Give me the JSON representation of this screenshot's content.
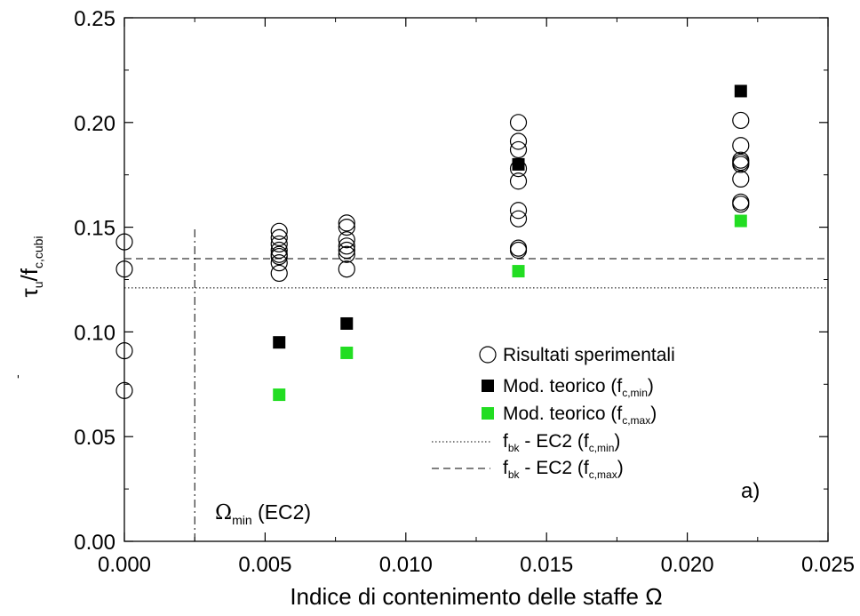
{
  "chart_data": {
    "type": "scatter",
    "xlabel": "Indice di contenimento delle staffe Ω",
    "ylabel": {
      "tau": "τ",
      "bar": "-",
      "u": "u",
      "slash_f": "/f",
      "sub": "c,cubi"
    },
    "xlim": [
      0.0,
      0.025
    ],
    "ylim": [
      0.0,
      0.25
    ],
    "x_ticks": [
      0.0,
      0.005,
      0.01,
      0.015,
      0.02,
      0.025
    ],
    "x_tick_labels": [
      "0.000",
      "0.005",
      "0.010",
      "0.015",
      "0.020",
      "0.025"
    ],
    "y_ticks": [
      0.0,
      0.05,
      0.1,
      0.15,
      0.2,
      0.25
    ],
    "y_tick_labels": [
      "0.00",
      "0.05",
      "0.10",
      "0.15",
      "0.20",
      "0.25"
    ],
    "grid": false,
    "legend_position": "lower-right",
    "series": [
      {
        "key": "sperimentali",
        "marker": "open-circle",
        "color": "#000000",
        "points": [
          [
            0.0,
            0.143
          ],
          [
            0.0,
            0.13
          ],
          [
            0.0,
            0.091
          ],
          [
            0.0,
            0.072
          ],
          [
            0.0055,
            0.148
          ],
          [
            0.0055,
            0.145
          ],
          [
            0.0055,
            0.142
          ],
          [
            0.0055,
            0.139
          ],
          [
            0.0055,
            0.137
          ],
          [
            0.0055,
            0.136
          ],
          [
            0.0055,
            0.133
          ],
          [
            0.0055,
            0.128
          ],
          [
            0.0079,
            0.152
          ],
          [
            0.0079,
            0.15
          ],
          [
            0.0079,
            0.144
          ],
          [
            0.0079,
            0.141
          ],
          [
            0.0079,
            0.139
          ],
          [
            0.0079,
            0.137
          ],
          [
            0.0079,
            0.13
          ],
          [
            0.014,
            0.2
          ],
          [
            0.014,
            0.191
          ],
          [
            0.014,
            0.187
          ],
          [
            0.014,
            0.178
          ],
          [
            0.014,
            0.172
          ],
          [
            0.014,
            0.158
          ],
          [
            0.014,
            0.154
          ],
          [
            0.014,
            0.14
          ],
          [
            0.014,
            0.139
          ],
          [
            0.0219,
            0.201
          ],
          [
            0.0219,
            0.189
          ],
          [
            0.0219,
            0.182
          ],
          [
            0.0219,
            0.181
          ],
          [
            0.0219,
            0.18
          ],
          [
            0.0219,
            0.173
          ],
          [
            0.0219,
            0.162
          ],
          [
            0.0219,
            0.161
          ]
        ]
      },
      {
        "key": "teorico_fcmin",
        "marker": "filled-square",
        "color": "#000000",
        "points": [
          [
            0.0055,
            0.095
          ],
          [
            0.0079,
            0.104
          ],
          [
            0.014,
            0.18
          ],
          [
            0.0219,
            0.215
          ]
        ]
      },
      {
        "key": "teorico_fcmax",
        "marker": "filled-square",
        "color": "#22dd22",
        "points": [
          [
            0.0055,
            0.07
          ],
          [
            0.0079,
            0.09
          ],
          [
            0.014,
            0.129
          ],
          [
            0.0219,
            0.153
          ]
        ]
      }
    ],
    "reference_lines": [
      {
        "key": "fbk_fcmin",
        "orientation": "horizontal",
        "y": 0.121,
        "style": "dotted"
      },
      {
        "key": "fbk_fcmax",
        "orientation": "horizontal",
        "y": 0.135,
        "style": "dashed"
      },
      {
        "key": "omega_min",
        "orientation": "vertical",
        "x": 0.0025,
        "y_top": 0.15,
        "style": "dash-dot"
      }
    ],
    "legend": [
      {
        "key": "sperimentali",
        "label": "Risultati sperimentali"
      },
      {
        "key": "teorico_fcmin",
        "label": "Mod. teorico (f",
        "sub": "c,min",
        "close": ")"
      },
      {
        "key": "teorico_fcmax",
        "label": "Mod. teorico (f",
        "sub": "c,max",
        "close": ")"
      },
      {
        "key": "fbk_fcmin",
        "pre": "f",
        "pre_sub": "bk",
        "label": " - EC2 (f",
        "sub": "c,min",
        "close": ")"
      },
      {
        "key": "fbk_fcmax",
        "pre": "f",
        "pre_sub": "bk",
        "label": " - EC2 (f",
        "sub": "c,max",
        "close": ")"
      }
    ],
    "annotations": {
      "omega_min": {
        "symbol": "Ω",
        "sub": "min",
        "rest": " (EC2)"
      },
      "panel": "a)"
    }
  }
}
